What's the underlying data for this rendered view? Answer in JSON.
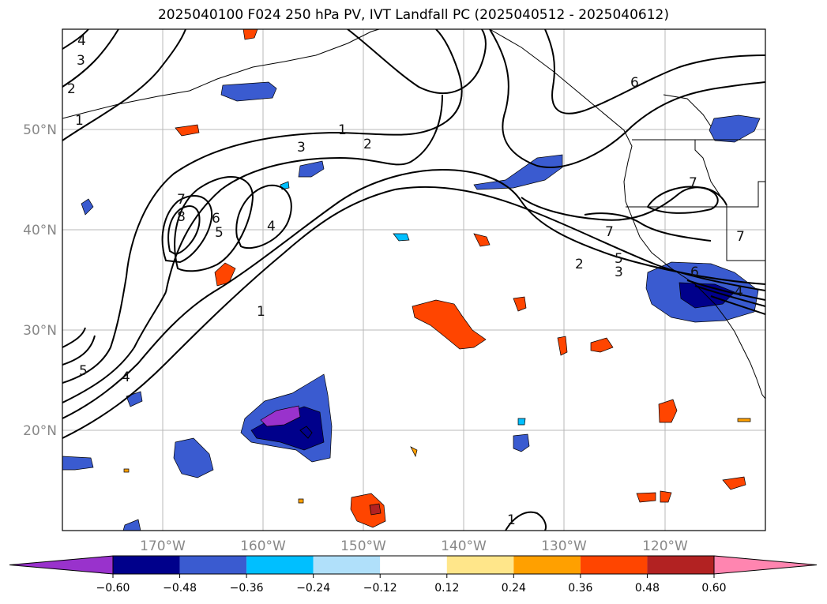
{
  "title": "2025040100 F024 250 hPa PV, IVT Landfall PC (2025040512 - 2025040612)",
  "map": {
    "lon_range": [
      -180,
      -110
    ],
    "lat_range": [
      10,
      60
    ],
    "lat_labels": [
      "50°N",
      "40°N",
      "30°N",
      "20°N"
    ],
    "lon_labels": [
      "170°W",
      "160°W",
      "150°W",
      "140°W",
      "130°W",
      "120°W"
    ],
    "grid": true,
    "contour_labels": [
      "1",
      "2",
      "3",
      "4",
      "5",
      "6",
      "7",
      "8"
    ]
  },
  "colorbar": {
    "ticks": [
      "−0.60",
      "−0.48",
      "−0.36",
      "−0.24",
      "−0.12",
      "0.12",
      "0.24",
      "0.36",
      "0.48",
      "0.60"
    ],
    "colors": [
      "#9932cc",
      "#00008b",
      "#3a5bd0",
      "#00bfff",
      "#b0e0fa",
      "#ffffff",
      "#ffe68a",
      "#ffa000",
      "#ff4500",
      "#b22222",
      "#ff85b0"
    ]
  }
}
